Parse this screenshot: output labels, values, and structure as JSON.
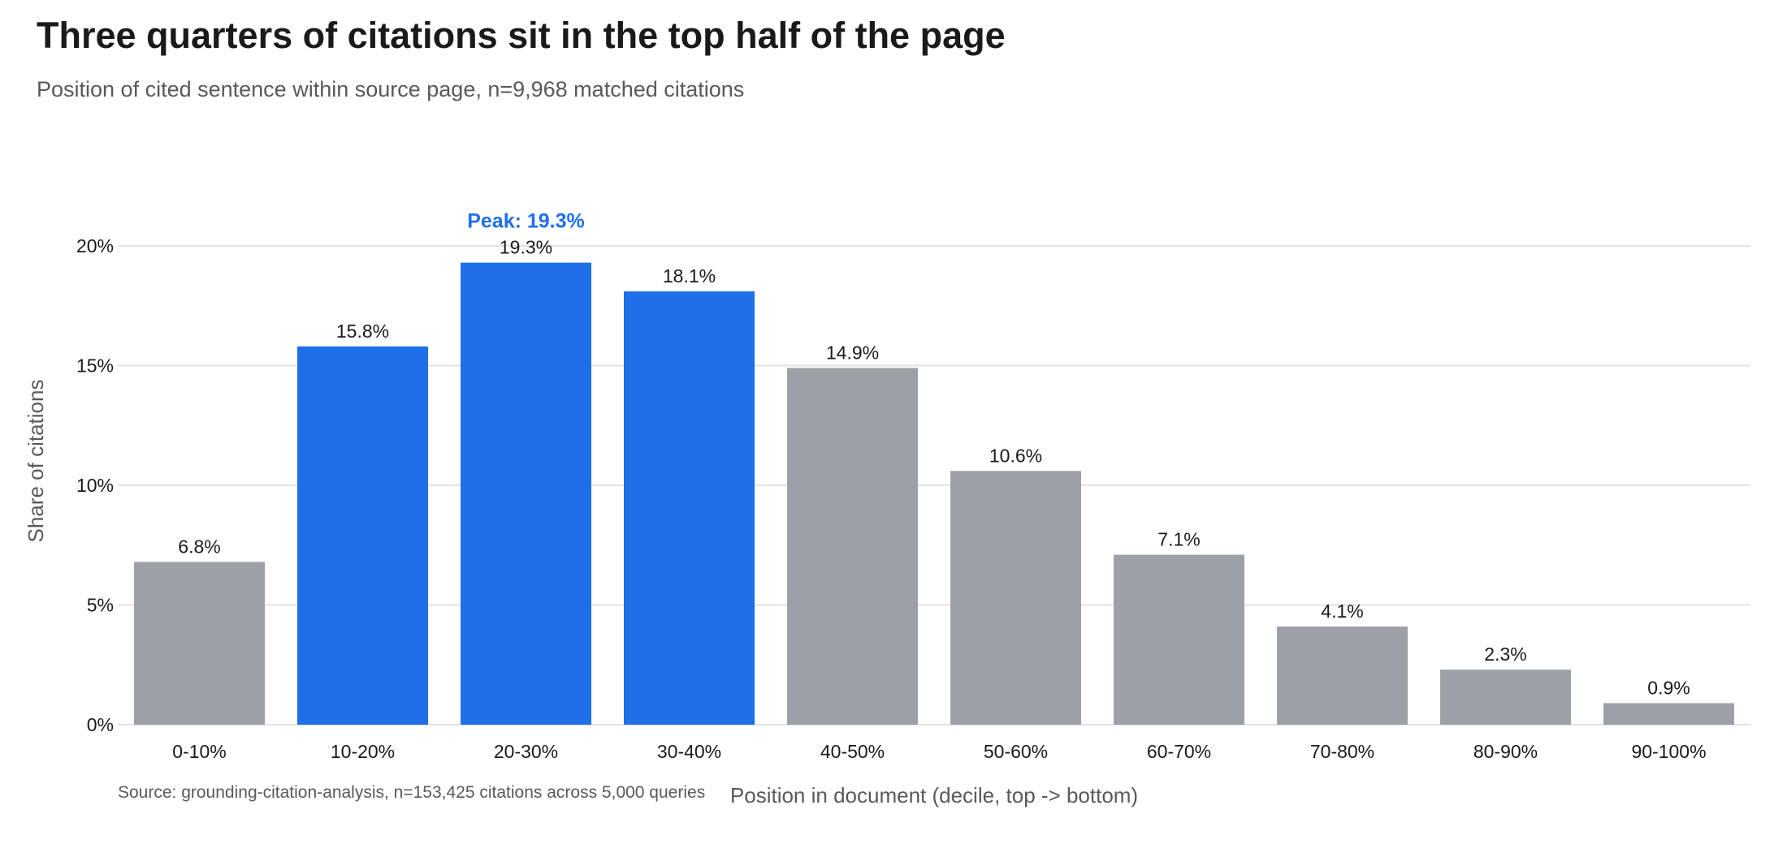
{
  "header": {
    "title": "Three quarters of citations sit in the top half of the page",
    "subtitle": "Position of cited sentence within source page, n=9,968 matched citations"
  },
  "colors": {
    "highlight": "#1f6fe8",
    "default_bar": "#9da1a7",
    "grid": "#e2e2e2",
    "annotation": "#1f6fe8"
  },
  "chart_data": {
    "type": "bar",
    "title": "Three quarters of citations sit in the top half of the page",
    "subtitle": "Position of cited sentence within source page, n=9,968 matched citations",
    "xlabel": "Position in document (decile, top -> bottom)",
    "ylabel": "Share of citations",
    "categories": [
      "0-10%",
      "10-20%",
      "20-30%",
      "30-40%",
      "40-50%",
      "50-60%",
      "60-70%",
      "70-80%",
      "80-90%",
      "90-100%"
    ],
    "values": [
      6.8,
      15.8,
      19.3,
      18.1,
      14.9,
      10.6,
      7.1,
      4.1,
      2.3,
      0.9
    ],
    "value_labels": [
      "6.8%",
      "15.8%",
      "19.3%",
      "18.1%",
      "14.9%",
      "10.6%",
      "7.1%",
      "4.1%",
      "2.3%",
      "0.9%"
    ],
    "highlighted": [
      false,
      true,
      true,
      true,
      false,
      false,
      false,
      false,
      false,
      false
    ],
    "ylim": [
      0,
      20
    ],
    "yticks": [
      0,
      5,
      10,
      15,
      20
    ],
    "ytick_labels": [
      "0%",
      "5%",
      "10%",
      "15%",
      "20%"
    ],
    "grid": true,
    "legend": "none",
    "annotation": {
      "category": "20-30%",
      "text": "Peak: 19.3%"
    },
    "source": "Source: grounding-citation-analysis, n=153,425 citations across 5,000 queries"
  }
}
